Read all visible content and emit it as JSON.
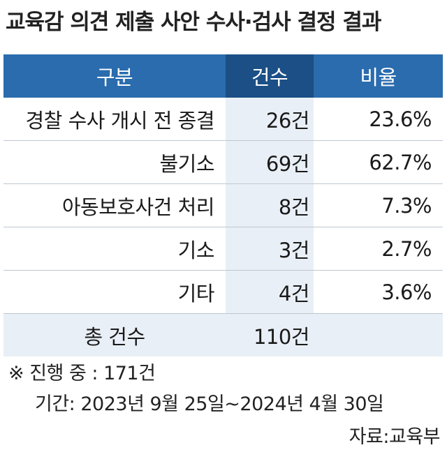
{
  "title": "교육감 의견 제출 사안 수사·검사 결정 결과",
  "table": {
    "headers": [
      "구분",
      "건수",
      "비율"
    ],
    "rows": [
      {
        "category": "경찰 수사 개시 전 종결",
        "count": "26건",
        "ratio": "23.6%"
      },
      {
        "category": "불기소",
        "count": "69건",
        "ratio": "62.7%"
      },
      {
        "category": "아동보호사건 처리",
        "count": "8건",
        "ratio": "7.3%"
      },
      {
        "category": "기소",
        "count": "3건",
        "ratio": "2.7%"
      },
      {
        "category": "기타",
        "count": "4건",
        "ratio": "3.6%"
      }
    ],
    "total": {
      "label": "총 건수",
      "count": "110건"
    }
  },
  "notes": {
    "in_progress": "※ 진행 중 : 171건",
    "period": "기간: 2023년 9월 25일~2024년 4월 30일"
  },
  "source": "자료:교육부",
  "colors": {
    "header_blue": "#2a6cad",
    "header_dark_blue": "#1b4f86",
    "light_blue_fill": "#e9eff6"
  }
}
